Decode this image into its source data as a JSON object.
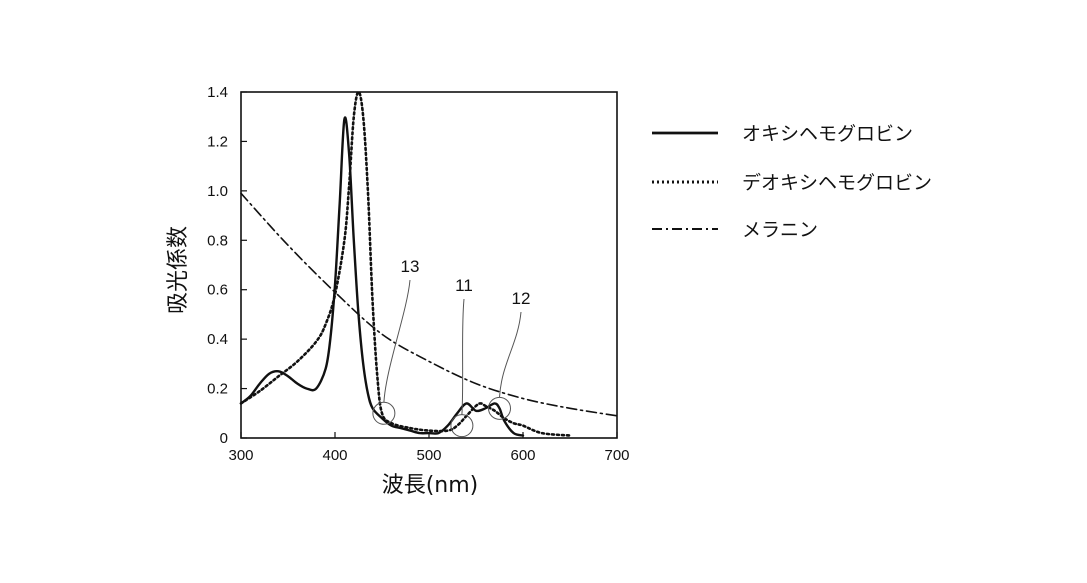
{
  "chart_data": {
    "type": "line",
    "xlabel": "波長(nm)",
    "ylabel": "吸光係数",
    "xlim": [
      300,
      700
    ],
    "ylim": [
      0,
      1.4
    ],
    "xticks": [
      300,
      400,
      500,
      600,
      700
    ],
    "yticks": [
      {
        "value": 0,
        "label": "0"
      },
      {
        "value": 0.2,
        "label": "0.2"
      },
      {
        "value": 0.4,
        "label": "0.4"
      },
      {
        "value": 0.6,
        "label": "0.6"
      },
      {
        "value": 0.8,
        "label": "0.8"
      },
      {
        "value": 1.0,
        "label": "1.0"
      },
      {
        "value": 1.2,
        "label": "1.2"
      },
      {
        "value": 1.4,
        "label": "1.4"
      }
    ],
    "grid": false,
    "legend_position": "right",
    "series": [
      {
        "name": "オキシヘモグロビン",
        "style": "solid",
        "x": [
          300,
          310,
          320,
          330,
          340,
          350,
          360,
          370,
          380,
          390,
          395,
          400,
          405,
          410,
          415,
          420,
          425,
          430,
          435,
          440,
          450,
          460,
          470,
          480,
          490,
          500,
          510,
          520,
          530,
          540,
          550,
          560,
          570,
          575,
          580,
          590,
          600
        ],
        "y": [
          0.14,
          0.17,
          0.22,
          0.26,
          0.27,
          0.25,
          0.22,
          0.2,
          0.2,
          0.28,
          0.4,
          0.62,
          0.95,
          1.29,
          1.15,
          0.8,
          0.5,
          0.3,
          0.18,
          0.12,
          0.08,
          0.05,
          0.04,
          0.03,
          0.02,
          0.02,
          0.02,
          0.05,
          0.1,
          0.14,
          0.11,
          0.12,
          0.14,
          0.12,
          0.07,
          0.02,
          0.01
        ]
      },
      {
        "name": "デオキシヘモグロビン",
        "style": "dotted",
        "x": [
          300,
          320,
          340,
          360,
          380,
          390,
          400,
          410,
          415,
          420,
          425,
          430,
          435,
          440,
          445,
          450,
          460,
          480,
          500,
          520,
          530,
          540,
          550,
          555,
          560,
          570,
          580,
          590,
          600,
          620,
          650
        ],
        "y": [
          0.14,
          0.19,
          0.25,
          0.31,
          0.39,
          0.46,
          0.58,
          0.8,
          1.02,
          1.3,
          1.4,
          1.3,
          1.0,
          0.55,
          0.25,
          0.1,
          0.06,
          0.04,
          0.03,
          0.03,
          0.05,
          0.09,
          0.13,
          0.14,
          0.13,
          0.11,
          0.08,
          0.06,
          0.05,
          0.02,
          0.01
        ]
      },
      {
        "name": "メラニン",
        "style": "dashdot",
        "x": [
          300,
          350,
          400,
          450,
          500,
          550,
          600,
          650,
          700
        ],
        "y": [
          0.99,
          0.78,
          0.59,
          0.42,
          0.31,
          0.22,
          0.16,
          0.12,
          0.09
        ]
      }
    ],
    "annotations": [
      {
        "label": "13",
        "x": 452,
        "y": 0.1
      },
      {
        "label": "11",
        "x": 535,
        "y": 0.05
      },
      {
        "label": "12",
        "x": 575,
        "y": 0.12
      }
    ]
  }
}
